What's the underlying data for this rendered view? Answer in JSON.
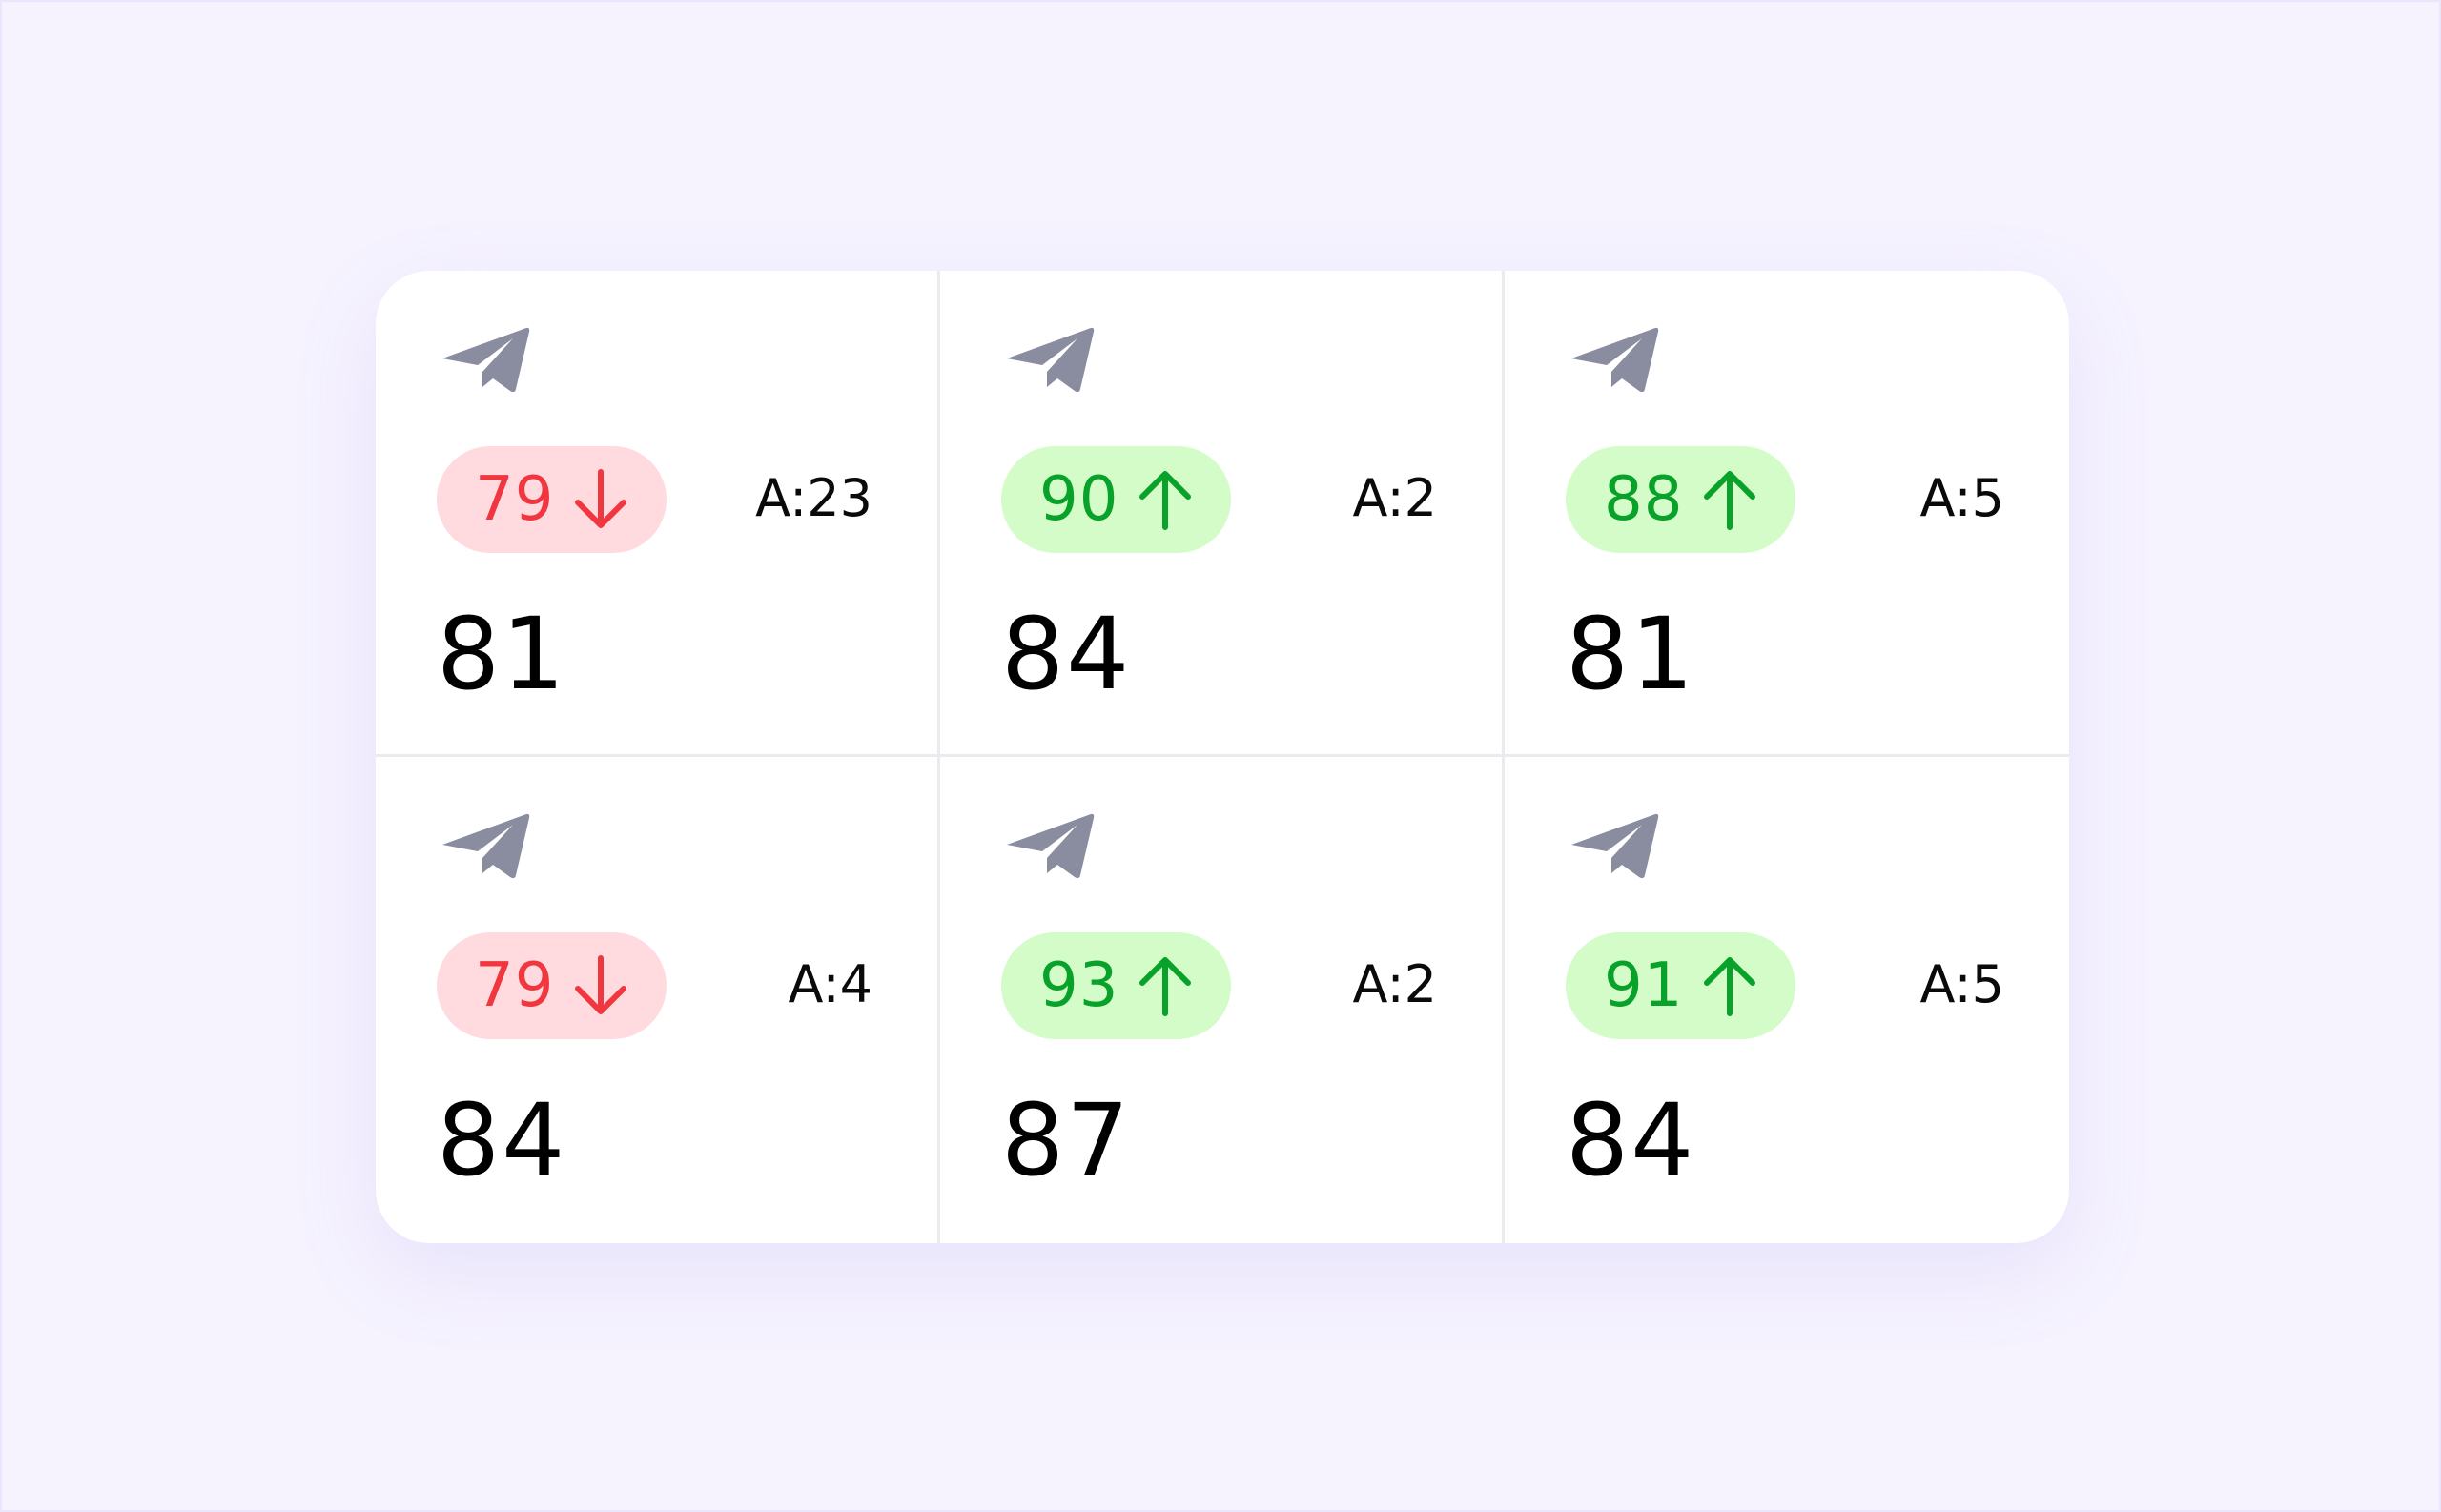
{
  "colors": {
    "page_background": "#f6f3ff",
    "card_background": "#ffffff",
    "divider": "#ebebef",
    "icon": "#8a8c9f",
    "down_text": "#f0363f",
    "down_background": "#ffdade",
    "up_text": "#08a22a",
    "up_background": "#d4fcc8"
  },
  "tiles": [
    {
      "icon": "paper-plane-icon",
      "change_value": "79",
      "trend": "down",
      "attempts": "A:23",
      "score": "81"
    },
    {
      "icon": "paper-plane-icon",
      "change_value": "90",
      "trend": "up",
      "attempts": "A:2",
      "score": "84"
    },
    {
      "icon": "paper-plane-icon",
      "change_value": "88",
      "trend": "up",
      "attempts": "A:5",
      "score": "81"
    },
    {
      "icon": "paper-plane-icon",
      "change_value": "79",
      "trend": "down",
      "attempts": "A:4",
      "score": "84"
    },
    {
      "icon": "paper-plane-icon",
      "change_value": "93",
      "trend": "up",
      "attempts": "A:2",
      "score": "87"
    },
    {
      "icon": "paper-plane-icon",
      "change_value": "91",
      "trend": "up",
      "attempts": "A:5",
      "score": "84"
    }
  ]
}
